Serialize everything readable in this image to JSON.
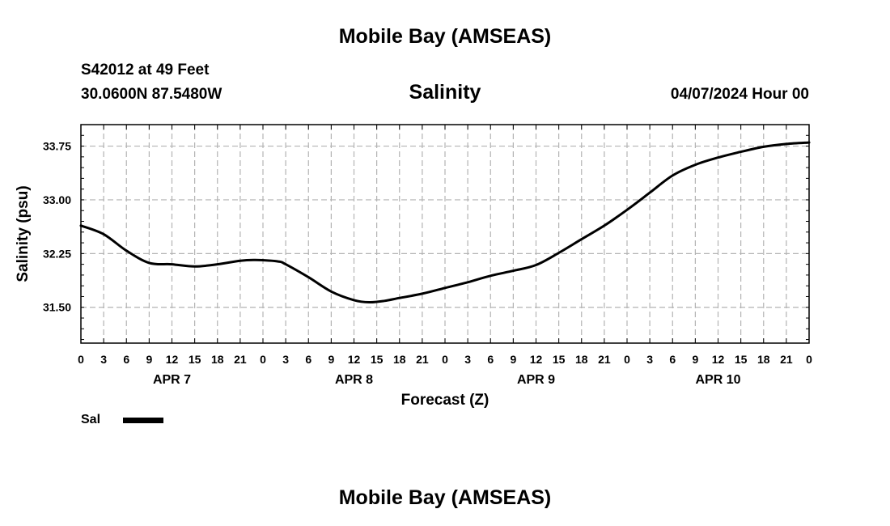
{
  "header": {
    "title": "Mobile Bay (AMSEAS)",
    "station": "S42012 at 49 Feet",
    "coords": "30.0600N  87.5480W",
    "variable": "Salinity",
    "datetime": "04/07/2024 Hour 00"
  },
  "footer": {
    "title": "Mobile Bay (AMSEAS)"
  },
  "legend": {
    "label": "Sal",
    "color": "#000000"
  },
  "chart_data": {
    "type": "line",
    "title": "Salinity",
    "xlabel": "Forecast (Z)",
    "ylabel": "Salinity (psu)",
    "xlim": [
      0,
      96
    ],
    "ylim": [
      31.0,
      34.05
    ],
    "grid": true,
    "x_tick_values": [
      0,
      3,
      6,
      9,
      12,
      15,
      18,
      21,
      24,
      27,
      30,
      33,
      36,
      39,
      42,
      45,
      48,
      51,
      54,
      57,
      60,
      63,
      66,
      69,
      72,
      75,
      78,
      81,
      84,
      87,
      90,
      93,
      96
    ],
    "x_tick_labels": [
      "0",
      "3",
      "6",
      "9",
      "12",
      "15",
      "18",
      "21",
      "0",
      "3",
      "6",
      "9",
      "12",
      "15",
      "18",
      "21",
      "0",
      "3",
      "6",
      "9",
      "12",
      "15",
      "18",
      "21",
      "0",
      "3",
      "6",
      "9",
      "12",
      "15",
      "18",
      "21",
      "0"
    ],
    "day_labels": [
      {
        "x": 12,
        "label": "APR 7"
      },
      {
        "x": 36,
        "label": "APR 8"
      },
      {
        "x": 60,
        "label": "APR 9"
      },
      {
        "x": 84,
        "label": "APR 10"
      }
    ],
    "y_ticks": [
      31.5,
      32.25,
      33.0,
      33.75
    ],
    "y_tick_labels": [
      "31.50",
      "32.25",
      "33.00",
      "33.75"
    ],
    "series": [
      {
        "name": "Sal",
        "x": [
          0,
          3,
          6,
          9,
          12,
          15,
          18,
          21,
          23,
          26,
          27,
          30,
          33,
          36,
          38,
          40,
          42,
          45,
          48,
          51,
          54,
          57,
          60,
          63,
          66,
          69,
          72,
          75,
          78,
          81,
          84,
          87,
          90,
          93,
          96
        ],
        "values": [
          32.64,
          32.52,
          32.29,
          32.12,
          32.1,
          32.07,
          32.1,
          32.15,
          32.16,
          32.14,
          32.1,
          31.92,
          31.72,
          31.6,
          31.57,
          31.59,
          31.63,
          31.69,
          31.77,
          31.85,
          31.94,
          32.01,
          32.09,
          32.26,
          32.45,
          32.64,
          32.86,
          33.1,
          33.34,
          33.49,
          33.59,
          33.67,
          33.74,
          33.78,
          33.8
        ]
      }
    ]
  }
}
